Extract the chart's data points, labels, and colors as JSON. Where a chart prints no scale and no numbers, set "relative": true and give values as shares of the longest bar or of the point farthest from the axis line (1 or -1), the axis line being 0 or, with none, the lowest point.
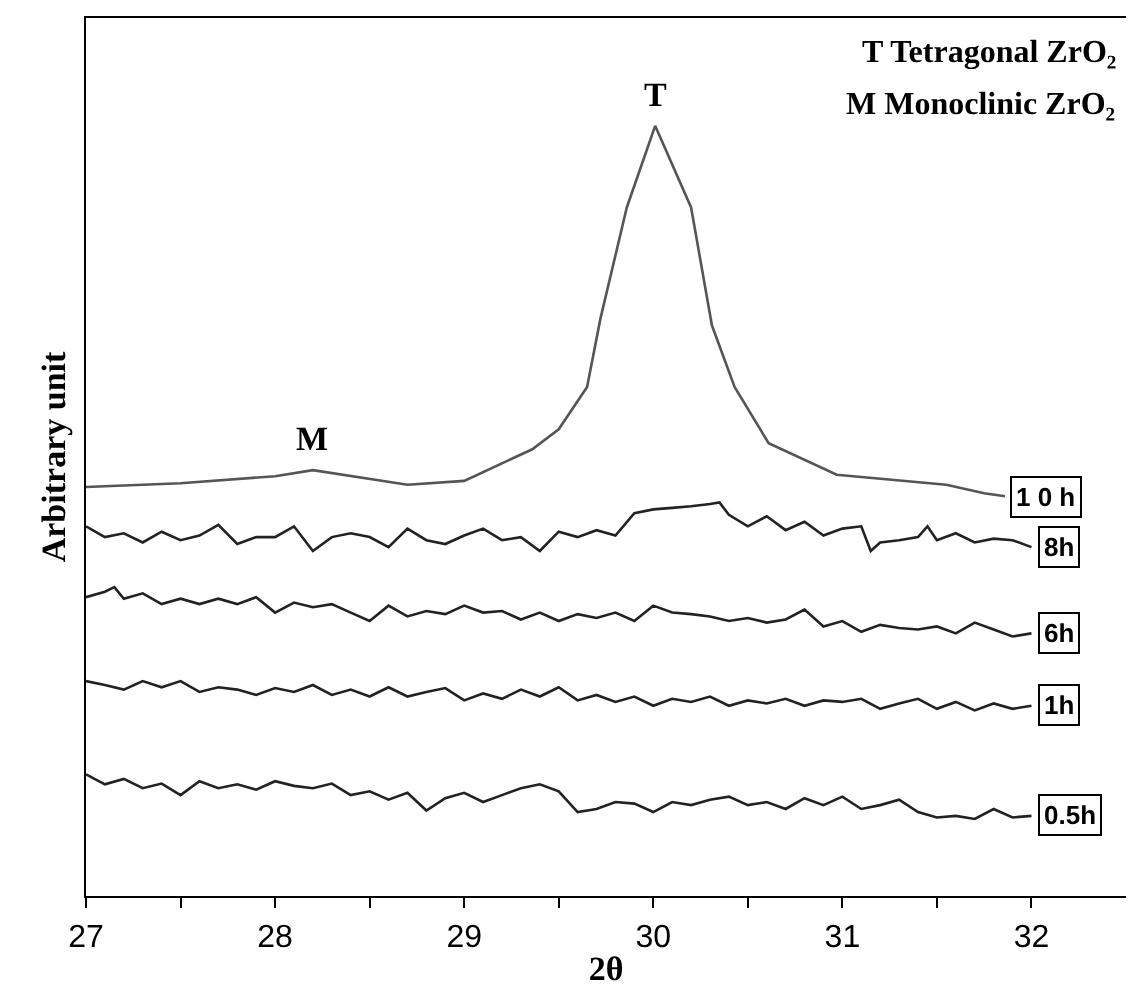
{
  "chart_data": {
    "type": "line",
    "relative": true,
    "xlabel": "2θ",
    "ylabel": "Arbitrary unit",
    "xlim": [
      27,
      32.5
    ],
    "xticks": [
      27,
      {
        "value": 27.5,
        "label": null
      },
      28,
      {
        "value": 28.5,
        "label": null
      },
      29,
      {
        "value": 29.5,
        "label": null
      },
      30,
      {
        "value": 30.5,
        "label": null
      },
      31,
      {
        "value": 31.5,
        "label": null
      },
      32
    ],
    "annotations": [
      "T Tetragonal ZrO₂",
      "M Monoclinic ZrO₂",
      {
        "text": "T",
        "x": 30.01,
        "y": 1.0
      },
      {
        "text": "M",
        "x": 28.2,
        "y": 0.553
      }
    ],
    "series": [
      {
        "name": "1 0 h",
        "color": "#555555",
        "x": [
          27.0,
          27.5,
          28.0,
          28.2,
          28.7,
          29.0,
          29.36,
          29.5,
          29.65,
          29.72,
          29.86,
          30.01,
          30.2,
          30.31,
          30.43,
          30.61,
          30.97,
          31.55,
          31.75,
          31.86
        ],
        "values": [
          0.531,
          0.536,
          0.545,
          0.553,
          0.534,
          0.539,
          0.58,
          0.606,
          0.661,
          0.749,
          0.894,
          1.0,
          0.894,
          0.741,
          0.661,
          0.588,
          0.547,
          0.534,
          0.523,
          0.519
        ]
      },
      {
        "name": "8h",
        "color": "#222222",
        "x": [
          27.0,
          27.1,
          27.2,
          27.3,
          27.4,
          27.5,
          27.6,
          27.7,
          27.8,
          27.9,
          28.0,
          28.1,
          28.2,
          28.3,
          28.4,
          28.5,
          28.6,
          28.7,
          28.8,
          28.9,
          29.0,
          29.1,
          29.2,
          29.3,
          29.4,
          29.5,
          29.6,
          29.7,
          29.8,
          29.9,
          30.0,
          30.1,
          30.2,
          30.3,
          30.35,
          30.4,
          30.5,
          30.6,
          30.7,
          30.8,
          30.9,
          31.0,
          31.1,
          31.15,
          31.2,
          31.3,
          31.4,
          31.45,
          31.5,
          31.6,
          31.7,
          31.8,
          31.9,
          32.0
        ],
        "values": [
          0.48,
          0.466,
          0.471,
          0.459,
          0.473,
          0.462,
          0.468,
          0.482,
          0.457,
          0.466,
          0.466,
          0.48,
          0.448,
          0.466,
          0.471,
          0.466,
          0.453,
          0.477,
          0.462,
          0.457,
          0.468,
          0.477,
          0.462,
          0.466,
          0.448,
          0.473,
          0.466,
          0.475,
          0.468,
          0.497,
          0.502,
          0.504,
          0.506,
          0.509,
          0.511,
          0.495,
          0.48,
          0.493,
          0.475,
          0.486,
          0.468,
          0.477,
          0.48,
          0.448,
          0.459,
          0.462,
          0.466,
          0.48,
          0.462,
          0.471,
          0.459,
          0.464,
          0.462,
          0.453
        ]
      },
      {
        "name": "6h",
        "color": "#222222",
        "x": [
          27.0,
          27.1,
          27.15,
          27.2,
          27.3,
          27.4,
          27.5,
          27.6,
          27.7,
          27.8,
          27.9,
          28.0,
          28.1,
          28.2,
          28.3,
          28.4,
          28.5,
          28.6,
          28.7,
          28.8,
          28.9,
          29.0,
          29.1,
          29.2,
          29.3,
          29.4,
          29.5,
          29.6,
          29.7,
          29.8,
          29.9,
          30.0,
          30.1,
          30.2,
          30.3,
          30.4,
          30.5,
          30.6,
          30.7,
          30.8,
          30.9,
          31.0,
          31.1,
          31.2,
          31.3,
          31.4,
          31.5,
          31.6,
          31.7,
          31.8,
          31.9,
          32.0
        ],
        "values": [
          0.388,
          0.395,
          0.401,
          0.386,
          0.393,
          0.379,
          0.386,
          0.379,
          0.386,
          0.379,
          0.388,
          0.368,
          0.381,
          0.375,
          0.379,
          0.368,
          0.357,
          0.377,
          0.363,
          0.37,
          0.366,
          0.377,
          0.368,
          0.37,
          0.359,
          0.368,
          0.357,
          0.366,
          0.361,
          0.368,
          0.357,
          0.377,
          0.368,
          0.366,
          0.363,
          0.357,
          0.361,
          0.355,
          0.359,
          0.372,
          0.35,
          0.357,
          0.343,
          0.352,
          0.348,
          0.346,
          0.35,
          0.341,
          0.355,
          0.346,
          0.337,
          0.341
        ]
      },
      {
        "name": "1h",
        "color": "#222222",
        "x": [
          27.0,
          27.1,
          27.2,
          27.3,
          27.4,
          27.5,
          27.6,
          27.7,
          27.8,
          27.9,
          28.0,
          28.1,
          28.2,
          28.3,
          28.4,
          28.5,
          28.6,
          28.7,
          28.8,
          28.9,
          29.0,
          29.1,
          29.2,
          29.3,
          29.4,
          29.5,
          29.6,
          29.7,
          29.8,
          29.9,
          30.0,
          30.1,
          30.2,
          30.3,
          30.4,
          30.5,
          30.6,
          30.7,
          30.8,
          30.9,
          31.0,
          31.1,
          31.2,
          31.3,
          31.4,
          31.5,
          31.6,
          31.7,
          31.8,
          31.9,
          32.0
        ],
        "values": [
          0.279,
          0.274,
          0.268,
          0.279,
          0.271,
          0.279,
          0.265,
          0.271,
          0.268,
          0.261,
          0.27,
          0.265,
          0.274,
          0.261,
          0.268,
          0.259,
          0.271,
          0.259,
          0.265,
          0.27,
          0.254,
          0.263,
          0.256,
          0.268,
          0.259,
          0.271,
          0.254,
          0.261,
          0.252,
          0.259,
          0.247,
          0.256,
          0.252,
          0.259,
          0.247,
          0.254,
          0.25,
          0.256,
          0.247,
          0.254,
          0.252,
          0.256,
          0.243,
          0.25,
          0.256,
          0.243,
          0.252,
          0.241,
          0.25,
          0.243,
          0.247
        ]
      },
      {
        "name": "0.5h",
        "color": "#222222",
        "x": [
          27.0,
          27.1,
          27.2,
          27.3,
          27.4,
          27.5,
          27.6,
          27.7,
          27.8,
          27.9,
          28.0,
          28.1,
          28.2,
          28.3,
          28.4,
          28.5,
          28.6,
          28.7,
          28.8,
          28.9,
          29.0,
          29.1,
          29.2,
          29.3,
          29.4,
          29.5,
          29.6,
          29.7,
          29.8,
          29.9,
          30.0,
          30.1,
          30.2,
          30.3,
          30.4,
          30.5,
          30.6,
          30.7,
          30.8,
          30.9,
          31.0,
          31.1,
          31.2,
          31.3,
          31.4,
          31.5,
          31.6,
          31.7,
          31.8,
          31.9,
          32.0
        ],
        "values": [
          0.158,
          0.145,
          0.152,
          0.14,
          0.146,
          0.131,
          0.149,
          0.14,
          0.145,
          0.138,
          0.149,
          0.143,
          0.14,
          0.146,
          0.131,
          0.136,
          0.125,
          0.134,
          0.111,
          0.127,
          0.134,
          0.122,
          0.131,
          0.14,
          0.145,
          0.136,
          0.109,
          0.113,
          0.122,
          0.12,
          0.109,
          0.122,
          0.118,
          0.125,
          0.129,
          0.118,
          0.122,
          0.113,
          0.127,
          0.118,
          0.129,
          0.113,
          0.118,
          0.125,
          0.109,
          0.102,
          0.104,
          0.1,
          0.113,
          0.102,
          0.104
        ]
      }
    ]
  }
}
